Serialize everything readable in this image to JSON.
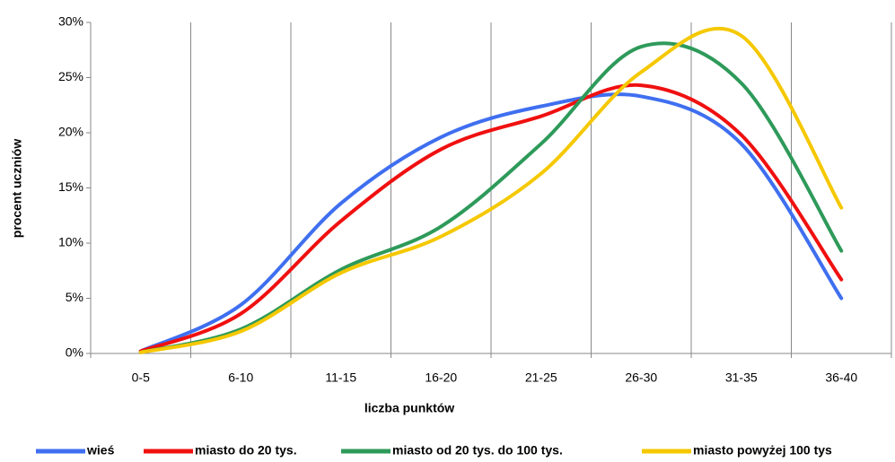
{
  "chart_data": {
    "type": "line",
    "x_label": "liczba punktów",
    "y_label": "procent  uczniów",
    "categories": [
      "0-5",
      "6-10",
      "11-15",
      "16-20",
      "21-25",
      "26-30",
      "31-35",
      "36-40"
    ],
    "series": [
      {
        "name": "wieś",
        "color": "#3f6ff0",
        "values": [
          0.2,
          4.4,
          13.6,
          19.6,
          22.4,
          23.3,
          19.0,
          5.0
        ]
      },
      {
        "name": "miasto do 20 tys.",
        "color": "#f01010",
        "values": [
          0.2,
          3.6,
          12.0,
          18.5,
          21.5,
          24.3,
          19.8,
          6.7
        ]
      },
      {
        "name": "miasto od 20 tys. do 100 tys.",
        "color": "#2e9a5a",
        "values": [
          0.1,
          2.2,
          7.6,
          11.5,
          19.0,
          27.8,
          24.5,
          9.3
        ]
      },
      {
        "name": "miasto powyżej 100 tys",
        "color": "#f5c800",
        "values": [
          0.1,
          2.0,
          7.3,
          10.6,
          16.3,
          25.5,
          28.8,
          13.2
        ]
      }
    ],
    "ylim": [
      0,
      30
    ],
    "yticks": [
      {
        "value": 0,
        "label": "0%"
      },
      {
        "value": 5,
        "label": "5%"
      },
      {
        "value": 10,
        "label": "10%"
      },
      {
        "value": 15,
        "label": "15%"
      },
      {
        "value": 20,
        "label": "20%"
      },
      {
        "value": 25,
        "label": "25%"
      },
      {
        "value": 30,
        "label": "30%"
      }
    ],
    "grid": true,
    "smooth": true,
    "legend": "bottom"
  }
}
